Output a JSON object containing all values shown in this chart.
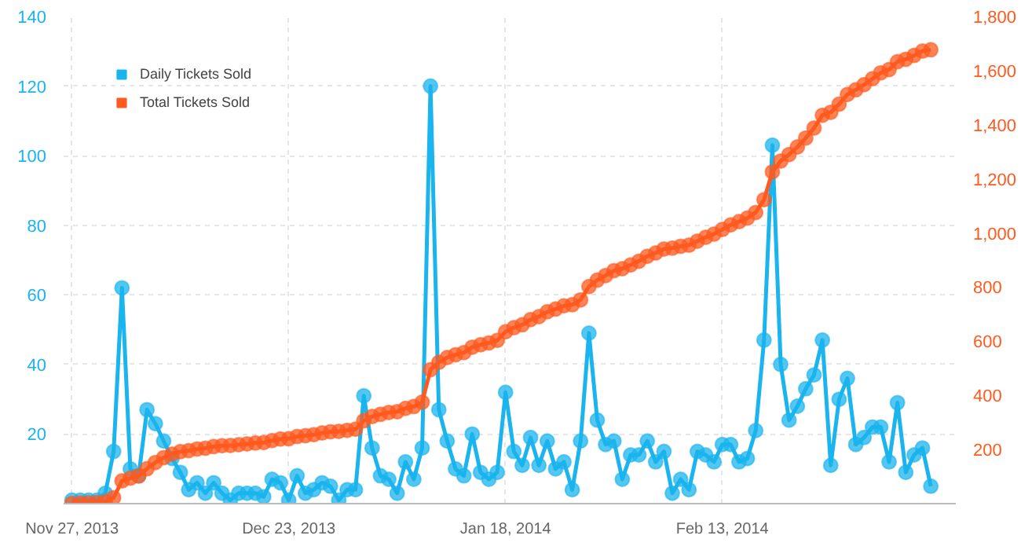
{
  "chart_data": {
    "type": "line",
    "x": [
      "2013-11-27",
      "2013-11-28",
      "2013-11-29",
      "2013-11-30",
      "2013-12-01",
      "2013-12-02",
      "2013-12-03",
      "2013-12-04",
      "2013-12-05",
      "2013-12-06",
      "2013-12-07",
      "2013-12-08",
      "2013-12-09",
      "2013-12-10",
      "2013-12-11",
      "2013-12-12",
      "2013-12-13",
      "2013-12-14",
      "2013-12-15",
      "2013-12-16",
      "2013-12-17",
      "2013-12-18",
      "2013-12-19",
      "2013-12-20",
      "2013-12-21",
      "2013-12-22",
      "2013-12-23",
      "2013-12-24",
      "2013-12-25",
      "2013-12-26",
      "2013-12-27",
      "2013-12-28",
      "2013-12-29",
      "2013-12-30",
      "2013-12-31",
      "2014-01-01",
      "2014-01-02",
      "2014-01-03",
      "2014-01-04",
      "2014-01-05",
      "2014-01-06",
      "2014-01-07",
      "2014-01-08",
      "2014-01-09",
      "2014-01-10",
      "2014-01-11",
      "2014-01-12",
      "2014-01-13",
      "2014-01-14",
      "2014-01-15",
      "2014-01-16",
      "2014-01-17",
      "2014-01-18",
      "2014-01-19",
      "2014-01-20",
      "2014-01-21",
      "2014-01-22",
      "2014-01-23",
      "2014-01-24",
      "2014-01-25",
      "2014-01-26",
      "2014-01-27",
      "2014-01-28",
      "2014-01-29",
      "2014-01-30",
      "2014-01-31",
      "2014-02-01",
      "2014-02-02",
      "2014-02-03",
      "2014-02-04",
      "2014-02-05",
      "2014-02-06",
      "2014-02-07",
      "2014-02-08",
      "2014-02-09",
      "2014-02-10",
      "2014-02-11",
      "2014-02-12",
      "2014-02-13",
      "2014-02-14",
      "2014-02-15",
      "2014-02-16",
      "2014-02-17",
      "2014-02-18",
      "2014-02-19",
      "2014-02-20",
      "2014-02-21",
      "2014-02-22",
      "2014-02-23",
      "2014-02-24",
      "2014-02-25",
      "2014-02-26",
      "2014-02-27",
      "2014-02-28",
      "2014-03-01",
      "2014-03-02",
      "2014-03-03",
      "2014-03-04",
      "2014-03-05",
      "2014-03-06",
      "2014-03-07",
      "2014-03-08",
      "2014-03-09",
      "2014-03-10"
    ],
    "series": [
      {
        "name": "Daily Tickets Sold",
        "color": "#1ab4ee",
        "values": [
          1,
          1,
          1,
          1,
          3,
          15,
          62,
          10,
          8,
          27,
          23,
          18,
          13,
          9,
          4,
          6,
          3,
          6,
          3,
          1,
          3,
          3,
          3,
          2,
          7,
          6,
          1,
          8,
          3,
          4,
          6,
          5,
          1,
          4,
          4,
          31,
          16,
          8,
          7,
          3,
          12,
          7,
          16,
          120,
          27,
          18,
          10,
          8,
          20,
          9,
          7,
          9,
          32,
          15,
          11,
          19,
          11,
          18,
          10,
          12,
          4,
          18,
          49,
          24,
          17,
          18,
          7,
          14,
          14,
          18,
          12,
          15,
          3,
          7,
          4,
          15,
          14,
          12,
          17,
          17,
          12,
          13,
          21,
          47,
          103,
          40,
          24,
          28,
          33,
          37,
          47,
          11,
          30,
          36,
          17,
          19,
          22,
          22,
          12,
          29,
          9,
          14,
          16,
          5
        ]
      },
      {
        "name": "Total Tickets Sold",
        "color": "#ff5a1f",
        "axis": "y2",
        "values": [
          1,
          2,
          3,
          4,
          7,
          22,
          84,
          94,
          102,
          129,
          152,
          170,
          183,
          192,
          196,
          202,
          205,
          211,
          214,
          215,
          218,
          221,
          224,
          226,
          233,
          239,
          240,
          248,
          251,
          255,
          261,
          266,
          267,
          271,
          275,
          306,
          322,
          330,
          337,
          340,
          352,
          359,
          375,
          495,
          522,
          540,
          550,
          558,
          578,
          587,
          594,
          603,
          635,
          650,
          661,
          680,
          691,
          709,
          719,
          731,
          735,
          753,
          802,
          826,
          843,
          861,
          868,
          882,
          896,
          914,
          926,
          941,
          944,
          951,
          955,
          970,
          984,
          996,
          1013,
          1030,
          1042,
          1055,
          1076,
          1123,
          1226,
          1266,
          1290,
          1318,
          1351,
          1388,
          1435,
          1446,
          1476,
          1512,
          1529,
          1548,
          1570,
          1592,
          1604,
          1633,
          1642,
          1656,
          1672,
          1677
        ]
      }
    ],
    "xlim": [
      "2013-11-26",
      "2014-03-13"
    ],
    "xticks": [
      {
        "value": "2013-11-27",
        "label": "Nov 27, 2013"
      },
      {
        "value": "2013-12-23",
        "label": "Dec 23, 2013"
      },
      {
        "value": "2014-01-18",
        "label": "Jan 18, 2014"
      },
      {
        "value": "2014-02-13",
        "label": "Feb 13, 2014"
      }
    ],
    "ylim": [
      0,
      140
    ],
    "yticks": [
      20,
      40,
      60,
      80,
      100,
      120,
      140
    ],
    "y2lim": [
      0,
      1800
    ],
    "y2ticks": [
      200,
      400,
      600,
      800,
      {
        "value": 1000,
        "label": "1,000"
      },
      {
        "value": 1200,
        "label": "1,200"
      },
      {
        "value": 1400,
        "label": "1,400"
      },
      {
        "value": 1600,
        "label": "1,600"
      },
      {
        "value": 1800,
        "label": "1,800"
      }
    ],
    "grid": true,
    "legend": "top left",
    "marker": "circle",
    "line_style": "solid"
  }
}
